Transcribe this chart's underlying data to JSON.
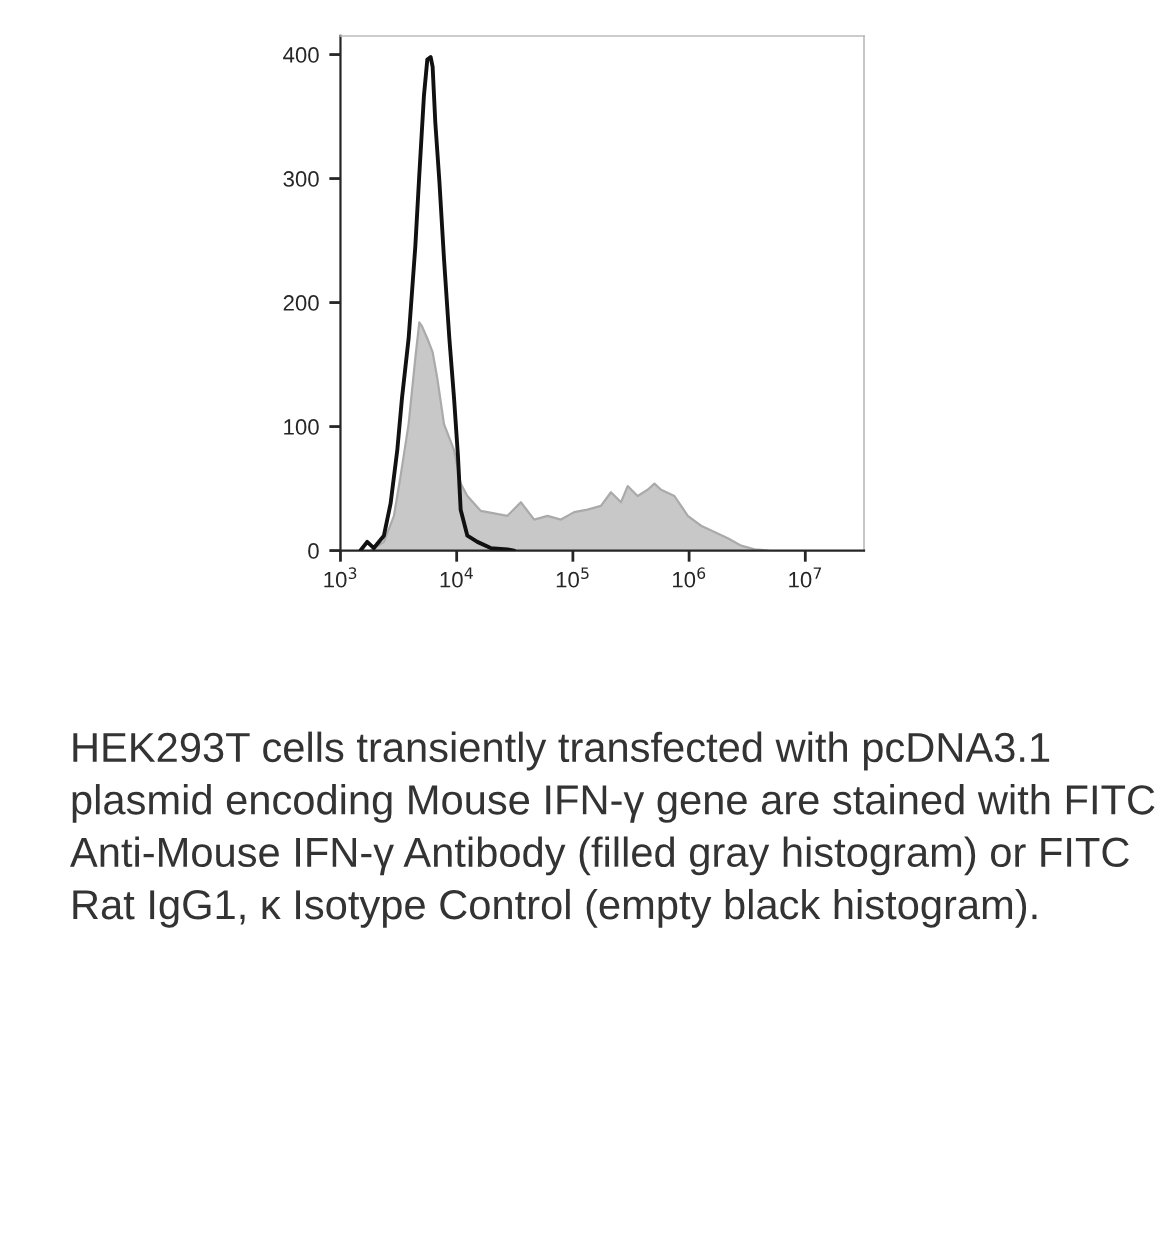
{
  "chart_data": {
    "type": "area",
    "series": [
      {
        "color": "#c8c8c8",
        "x": [
          1815,
          2364,
          2884,
          3289,
          3858,
          4404,
          4767,
          5023,
          5590,
          6210,
          6808,
          7781,
          9490,
          10820,
          12360,
          16110,
          20990,
          27340,
          35650,
          46450,
          60530,
          78890,
          102600,
          133700,
          174200,
          212700,
          259600,
          296100,
          360600,
          440000,
          502700,
          574100,
          748000,
          974700,
          1268000,
          1652000,
          2153000,
          2806000,
          3656000,
          4764000
        ],
        "values": [
          0,
          7,
          28,
          60,
          102,
          155,
          184,
          181,
          171,
          160,
          139,
          102,
          81,
          54,
          44,
          32,
          30,
          28,
          39,
          25,
          28,
          25,
          31,
          33,
          36,
          47,
          39,
          52,
          44,
          49,
          54,
          49,
          44,
          28,
          20,
          15,
          10,
          4,
          1,
          0
        ]
      },
      {
        "type": "line",
        "color": "#111111",
        "x": [
          1486,
          1698,
          1938,
          2364,
          2700,
          3082,
          3384,
          3858,
          4404,
          4767,
          5229,
          5590,
          5972,
          6210,
          6549,
          7096,
          7781,
          8650,
          9490,
          10260,
          10820,
          12360,
          15070,
          19630,
          27340,
          31190
        ],
        "values": [
          0,
          7,
          2,
          12,
          38,
          81,
          123,
          171,
          245,
          303,
          367,
          396,
          398,
          390,
          345,
          298,
          235,
          171,
          123,
          76,
          33,
          12,
          7,
          2,
          1,
          0
        ]
      }
    ],
    "log": "x",
    "xlim": [
      1000,
      32000000
    ],
    "xticks": [
      {
        "value": 1000,
        "label": "10$^{3}$"
      },
      {
        "value": 10000,
        "label": "10$^{4}$"
      },
      {
        "value": 100000,
        "label": "10$^{5}$"
      },
      {
        "value": 1000000,
        "label": "10$^{6}$"
      },
      {
        "value": 10000000,
        "label": "10$^{7}$"
      }
    ],
    "ylim": [
      0,
      415
    ],
    "yticks": [
      0,
      100,
      200,
      300,
      400
    ],
    "grid": false,
    "legend": false,
    "annotations": [
      "HEK293T cells transiently transfected with pcDNA3.1 plasmid encoding Mouse IFN-γ gene are stained with FITC Anti-Mouse IFN-γ Antibody (filled gray histogram) or FITC Rat IgG1, κ Isotype Control (empty black histogram)."
    ]
  }
}
